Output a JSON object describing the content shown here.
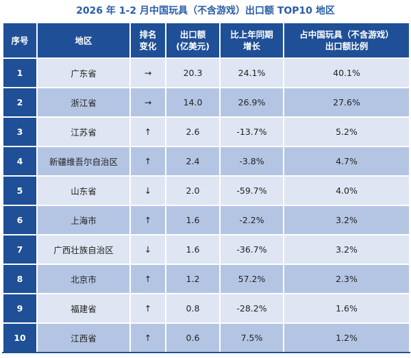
{
  "title": "2026 年 1-2 月中国玩具（不含游戏）出口额 TOP10 地区",
  "headers": {
    "rank": "序号",
    "region": "地区",
    "change": "排名\n变化",
    "export": "出口额\n(亿美元)",
    "yoy": "比上年同期\n增长",
    "share": "占中国玩具（不含游戏）\n出口额比例"
  },
  "rows": [
    {
      "rank": "1",
      "region": "广东省",
      "change": "→",
      "export": "20.3",
      "yoy": "24.1%",
      "share": "40.1%"
    },
    {
      "rank": "2",
      "region": "浙江省",
      "change": "→",
      "export": "14.0",
      "yoy": "26.9%",
      "share": "27.6%"
    },
    {
      "rank": "3",
      "region": "江苏省",
      "change": "↑",
      "export": "2.6",
      "yoy": "-13.7%",
      "share": "5.2%"
    },
    {
      "rank": "4",
      "region": "新疆维吾尔自治区",
      "change": "↑",
      "export": "2.4",
      "yoy": "-3.8%",
      "share": "4.7%"
    },
    {
      "rank": "5",
      "region": "山东省",
      "change": "↓",
      "export": "2.0",
      "yoy": "-59.7%",
      "share": "4.0%"
    },
    {
      "rank": "6",
      "region": "上海市",
      "change": "↑",
      "export": "1.6",
      "yoy": "-2.2%",
      "share": "3.2%"
    },
    {
      "rank": "7",
      "region": "广西壮族自治区",
      "change": "↓",
      "export": "1.6",
      "yoy": "-36.7%",
      "share": "3.2%"
    },
    {
      "rank": "8",
      "region": "北京市",
      "change": "↑",
      "export": "1.2",
      "yoy": "57.2%",
      "share": "2.3%"
    },
    {
      "rank": "9",
      "region": "福建省",
      "change": "↑",
      "export": "0.8",
      "yoy": "-28.2%",
      "share": "1.6%"
    },
    {
      "rank": "10",
      "region": "江西省",
      "change": "↑",
      "export": "0.6",
      "yoy": "7.5%",
      "share": "1.2%"
    }
  ],
  "colors": {
    "header_bg": "#1f4f96",
    "title_text": "#2a5da8",
    "row_light": "#dfe5f2",
    "row_dark": "#b4c5e4"
  }
}
